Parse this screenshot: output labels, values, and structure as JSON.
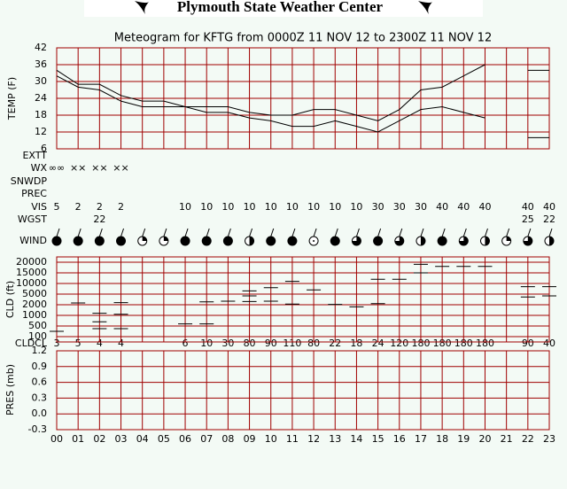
{
  "header": {
    "title": "Plymouth State Weather Center"
  },
  "rows": {
    "extt": {
      "label": "EXTT"
    },
    "wx": {
      "label": "WX",
      "values": [
        "∞∞",
        "××",
        "××",
        "××",
        null,
        null,
        null,
        null,
        null,
        null,
        null,
        null,
        null,
        null,
        null,
        null,
        null,
        null,
        null,
        null,
        null,
        null,
        null,
        null
      ]
    },
    "snwdp": {
      "label": "SNWDP"
    },
    "prec": {
      "label": "PREC"
    },
    "vis": {
      "label": "VIS",
      "values": [
        5,
        2,
        2,
        2,
        null,
        null,
        10,
        10,
        10,
        10,
        10,
        10,
        10,
        10,
        10,
        30,
        30,
        30,
        40,
        40,
        40,
        null,
        40,
        40
      ]
    },
    "wgst": {
      "label": "WGST",
      "values": [
        null,
        null,
        22,
        null,
        null,
        null,
        null,
        null,
        null,
        null,
        null,
        null,
        null,
        null,
        null,
        null,
        null,
        null,
        null,
        null,
        null,
        null,
        25,
        22
      ]
    },
    "wind": {
      "label": "WIND",
      "cover": [
        1,
        1,
        1,
        1,
        0.25,
        0.25,
        1,
        1,
        1,
        0.5,
        1,
        1,
        0,
        1,
        0.75,
        1,
        0.75,
        0.5,
        1,
        0.75,
        0.5,
        0.25,
        0.75,
        0.5
      ]
    },
    "cldcl": {
      "label": "CLDCL",
      "values": [
        3,
        5,
        4,
        4,
        null,
        null,
        6,
        10,
        30,
        80,
        90,
        110,
        80,
        22,
        18,
        24,
        120,
        180,
        180,
        180,
        180,
        null,
        90,
        40
      ]
    }
  },
  "chart_data": [
    {
      "type": "line",
      "title": "Meteogram for KFTG from 0000Z 11 NOV 12 to 2300Z 11 NOV 12",
      "y_label": "TEMP (F)",
      "categories": [
        "00",
        "01",
        "02",
        "03",
        "04",
        "05",
        "06",
        "07",
        "08",
        "09",
        "10",
        "11",
        "12",
        "13",
        "14",
        "15",
        "16",
        "17",
        "18",
        "19",
        "20",
        "21",
        "22",
        "23"
      ],
      "series": [
        {
          "color": "#000000",
          "values": [
            34,
            29,
            29,
            25,
            23,
            23,
            21,
            21,
            21,
            19,
            18,
            18,
            20,
            20,
            18,
            16,
            20,
            27,
            28,
            32,
            36,
            null,
            34,
            34
          ]
        },
        {
          "color": "#000000",
          "values": [
            32,
            28,
            27,
            23,
            21,
            21,
            21,
            19,
            19,
            17,
            16,
            14,
            14,
            16,
            14,
            12,
            16,
            20,
            21,
            19,
            17,
            null,
            10,
            10
          ]
        }
      ],
      "ylim": [
        6,
        42
      ],
      "yticks": [
        6,
        12,
        18,
        24,
        30,
        36,
        42
      ],
      "grid": true,
      "grid_color": "#a00000"
    },
    {
      "type": "scatter",
      "y_label": "CLD (ft)",
      "xlim": [
        0,
        23
      ],
      "x": [
        0,
        1,
        2,
        2,
        2,
        3,
        3,
        3,
        6,
        7,
        7,
        8,
        9,
        9,
        9,
        10,
        10,
        11,
        11,
        12,
        13,
        14,
        15,
        15,
        16,
        17,
        17,
        18,
        19,
        20,
        22,
        22,
        23,
        23
      ],
      "values": [
        300,
        2500,
        1200,
        700,
        400,
        2600,
        1100,
        400,
        600,
        2800,
        600,
        3000,
        6500,
        4500,
        2900,
        8000,
        3000,
        11000,
        2200,
        7000,
        2100,
        1800,
        12000,
        2300,
        12000,
        15000,
        19000,
        18000,
        18000,
        18000,
        8500,
        4200,
        8500,
        4500
      ],
      "color": "#000000",
      "yticks": [
        100,
        500,
        1000,
        2000,
        5000,
        10000,
        15000,
        20000
      ],
      "grid": true,
      "grid_color": "#a00000"
    },
    {
      "type": "line",
      "y_label": "PRES (mb)",
      "ylim": [
        -0.3,
        1.2
      ],
      "yticks": [
        -0.3,
        {
          "value": 0,
          "label": "0.0"
        },
        0.3,
        0.6,
        0.9,
        1.2
      ],
      "grid": true,
      "grid_color": "#a00000"
    }
  ]
}
